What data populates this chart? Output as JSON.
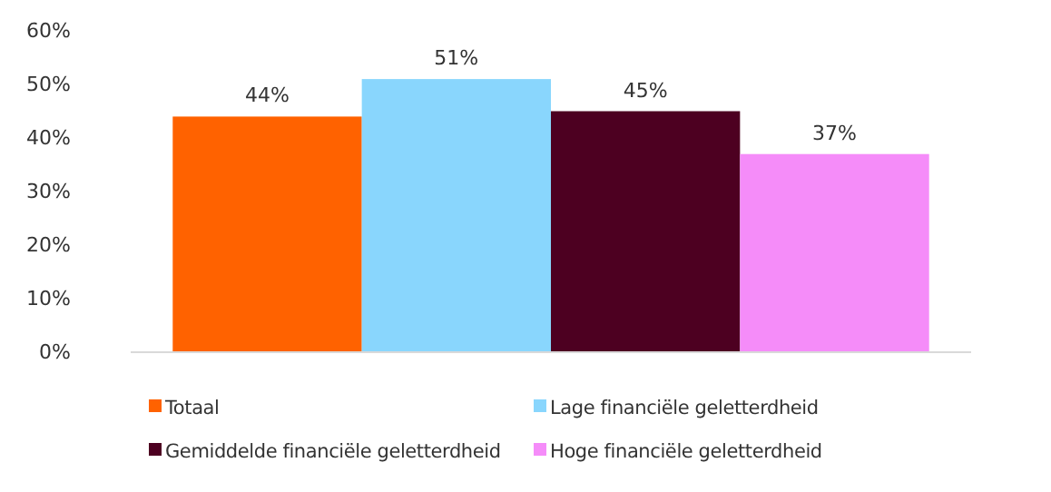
{
  "chart_data": {
    "type": "bar",
    "categories": [
      null
    ],
    "series": [
      {
        "name": "Totaal",
        "color": "#ff6200",
        "values": [
          44
        ],
        "value_labels": [
          "44%"
        ]
      },
      {
        "name": "Lage financiële geletterdheid",
        "color": "#89d6fd",
        "values": [
          51
        ],
        "value_labels": [
          "51%"
        ]
      },
      {
        "name": "Gemiddelde financiële geletterdheid",
        "color": "#4d0021",
        "values": [
          45
        ],
        "value_labels": [
          "45%"
        ]
      },
      {
        "name": "Hoge financiële geletterdheid",
        "color": "#f58cf9",
        "values": [
          37
        ],
        "value_labels": [
          "37%"
        ]
      }
    ],
    "ylim": [
      0,
      60
    ],
    "yticks": [
      {
        "value": 0,
        "label": "0%"
      },
      {
        "value": 10,
        "label": "10%"
      },
      {
        "value": 20,
        "label": "20%"
      },
      {
        "value": 30,
        "label": "30%"
      },
      {
        "value": 40,
        "label": "40%"
      },
      {
        "value": 50,
        "label": "50%"
      },
      {
        "value": 60,
        "label": "60%"
      }
    ],
    "legend": "bottom"
  }
}
